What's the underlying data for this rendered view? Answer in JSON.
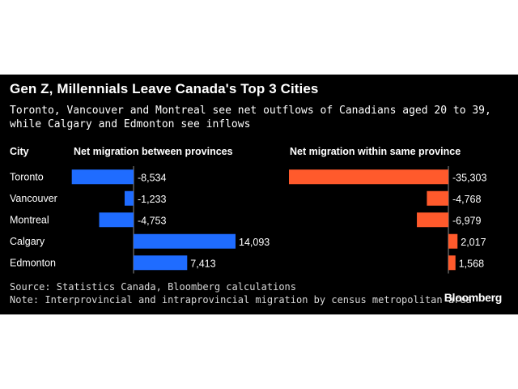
{
  "title": "Gen Z, Millennials Leave Canada's Top 3 Cities",
  "subtitle": "Toronto, Vancouver and Montreal see net outflows of Canadians aged 20 to 39, while Calgary and Edmonton see inflows",
  "source": "Source: Statistics Canada, Bloomberg calculations",
  "note": "Note: Interprovincial and intraprovincial migration by census metropolitan area",
  "brand": "Bloomberg",
  "colors": {
    "background": "#000000",
    "between_provinces": "#1f6cff",
    "within_province": "#ff5a2c",
    "text": "#ffffff"
  },
  "chart_data": {
    "type": "bar",
    "orientation": "horizontal",
    "category_header": "City",
    "categories": [
      "Toronto",
      "Vancouver",
      "Montreal",
      "Calgary",
      "Edmonton"
    ],
    "series": [
      {
        "name": "Net migration between provinces",
        "values": [
          -8534,
          -1233,
          -4753,
          14093,
          7413
        ],
        "value_labels": [
          "-8,534",
          "-1,233",
          "-4,753",
          "14,093",
          "7,413"
        ]
      },
      {
        "name": "Net migration within same province",
        "values": [
          -35303,
          -4768,
          -6979,
          2017,
          1568
        ],
        "value_labels": [
          "-35,303",
          "-4,768",
          "-6,979",
          "2,017",
          "1,568"
        ]
      }
    ],
    "grid": false
  }
}
